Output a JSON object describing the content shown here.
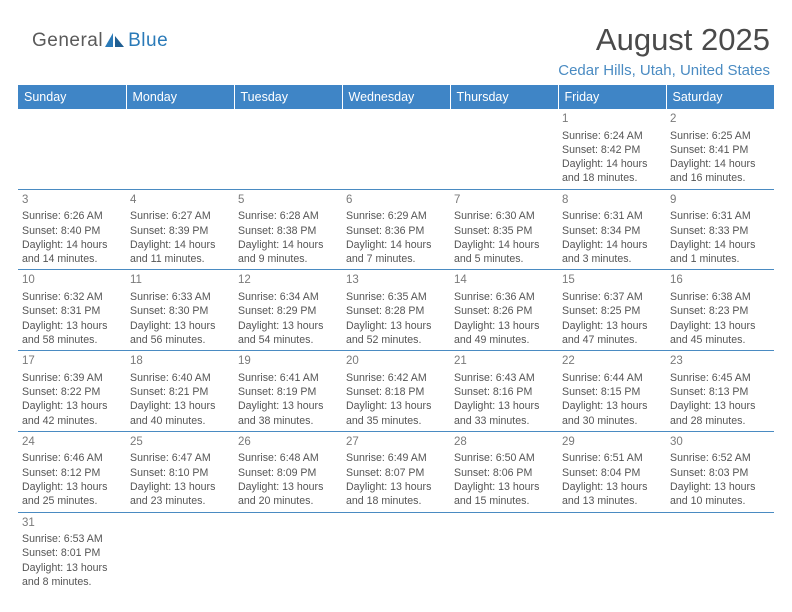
{
  "logo": {
    "part1": "General",
    "part2": "Blue"
  },
  "title": "August 2025",
  "location": "Cedar Hills, Utah, United States",
  "colors": {
    "header_bg": "#3f85c6",
    "header_text": "#ffffff",
    "rule": "#4a8bc2",
    "text": "#555555",
    "title_text": "#4a4a4a",
    "location_text": "#4a8bc2"
  },
  "dayNames": [
    "Sunday",
    "Monday",
    "Tuesday",
    "Wednesday",
    "Thursday",
    "Friday",
    "Saturday"
  ],
  "weeks": [
    [
      null,
      null,
      null,
      null,
      null,
      {
        "n": "1",
        "sunrise": "6:24 AM",
        "sunset": "8:42 PM",
        "dh": "14",
        "dm": "18"
      },
      {
        "n": "2",
        "sunrise": "6:25 AM",
        "sunset": "8:41 PM",
        "dh": "14",
        "dm": "16"
      }
    ],
    [
      {
        "n": "3",
        "sunrise": "6:26 AM",
        "sunset": "8:40 PM",
        "dh": "14",
        "dm": "14"
      },
      {
        "n": "4",
        "sunrise": "6:27 AM",
        "sunset": "8:39 PM",
        "dh": "14",
        "dm": "11"
      },
      {
        "n": "5",
        "sunrise": "6:28 AM",
        "sunset": "8:38 PM",
        "dh": "14",
        "dm": "9"
      },
      {
        "n": "6",
        "sunrise": "6:29 AM",
        "sunset": "8:36 PM",
        "dh": "14",
        "dm": "7"
      },
      {
        "n": "7",
        "sunrise": "6:30 AM",
        "sunset": "8:35 PM",
        "dh": "14",
        "dm": "5"
      },
      {
        "n": "8",
        "sunrise": "6:31 AM",
        "sunset": "8:34 PM",
        "dh": "14",
        "dm": "3"
      },
      {
        "n": "9",
        "sunrise": "6:31 AM",
        "sunset": "8:33 PM",
        "dh": "14",
        "dm": "1"
      }
    ],
    [
      {
        "n": "10",
        "sunrise": "6:32 AM",
        "sunset": "8:31 PM",
        "dh": "13",
        "dm": "58"
      },
      {
        "n": "11",
        "sunrise": "6:33 AM",
        "sunset": "8:30 PM",
        "dh": "13",
        "dm": "56"
      },
      {
        "n": "12",
        "sunrise": "6:34 AM",
        "sunset": "8:29 PM",
        "dh": "13",
        "dm": "54"
      },
      {
        "n": "13",
        "sunrise": "6:35 AM",
        "sunset": "8:28 PM",
        "dh": "13",
        "dm": "52"
      },
      {
        "n": "14",
        "sunrise": "6:36 AM",
        "sunset": "8:26 PM",
        "dh": "13",
        "dm": "49"
      },
      {
        "n": "15",
        "sunrise": "6:37 AM",
        "sunset": "8:25 PM",
        "dh": "13",
        "dm": "47"
      },
      {
        "n": "16",
        "sunrise": "6:38 AM",
        "sunset": "8:23 PM",
        "dh": "13",
        "dm": "45"
      }
    ],
    [
      {
        "n": "17",
        "sunrise": "6:39 AM",
        "sunset": "8:22 PM",
        "dh": "13",
        "dm": "42"
      },
      {
        "n": "18",
        "sunrise": "6:40 AM",
        "sunset": "8:21 PM",
        "dh": "13",
        "dm": "40"
      },
      {
        "n": "19",
        "sunrise": "6:41 AM",
        "sunset": "8:19 PM",
        "dh": "13",
        "dm": "38"
      },
      {
        "n": "20",
        "sunrise": "6:42 AM",
        "sunset": "8:18 PM",
        "dh": "13",
        "dm": "35"
      },
      {
        "n": "21",
        "sunrise": "6:43 AM",
        "sunset": "8:16 PM",
        "dh": "13",
        "dm": "33"
      },
      {
        "n": "22",
        "sunrise": "6:44 AM",
        "sunset": "8:15 PM",
        "dh": "13",
        "dm": "30"
      },
      {
        "n": "23",
        "sunrise": "6:45 AM",
        "sunset": "8:13 PM",
        "dh": "13",
        "dm": "28"
      }
    ],
    [
      {
        "n": "24",
        "sunrise": "6:46 AM",
        "sunset": "8:12 PM",
        "dh": "13",
        "dm": "25"
      },
      {
        "n": "25",
        "sunrise": "6:47 AM",
        "sunset": "8:10 PM",
        "dh": "13",
        "dm": "23"
      },
      {
        "n": "26",
        "sunrise": "6:48 AM",
        "sunset": "8:09 PM",
        "dh": "13",
        "dm": "20"
      },
      {
        "n": "27",
        "sunrise": "6:49 AM",
        "sunset": "8:07 PM",
        "dh": "13",
        "dm": "18"
      },
      {
        "n": "28",
        "sunrise": "6:50 AM",
        "sunset": "8:06 PM",
        "dh": "13",
        "dm": "15"
      },
      {
        "n": "29",
        "sunrise": "6:51 AM",
        "sunset": "8:04 PM",
        "dh": "13",
        "dm": "13"
      },
      {
        "n": "30",
        "sunrise": "6:52 AM",
        "sunset": "8:03 PM",
        "dh": "13",
        "dm": "10"
      }
    ],
    [
      {
        "n": "31",
        "sunrise": "6:53 AM",
        "sunset": "8:01 PM",
        "dh": "13",
        "dm": "8"
      },
      null,
      null,
      null,
      null,
      null,
      null
    ]
  ]
}
